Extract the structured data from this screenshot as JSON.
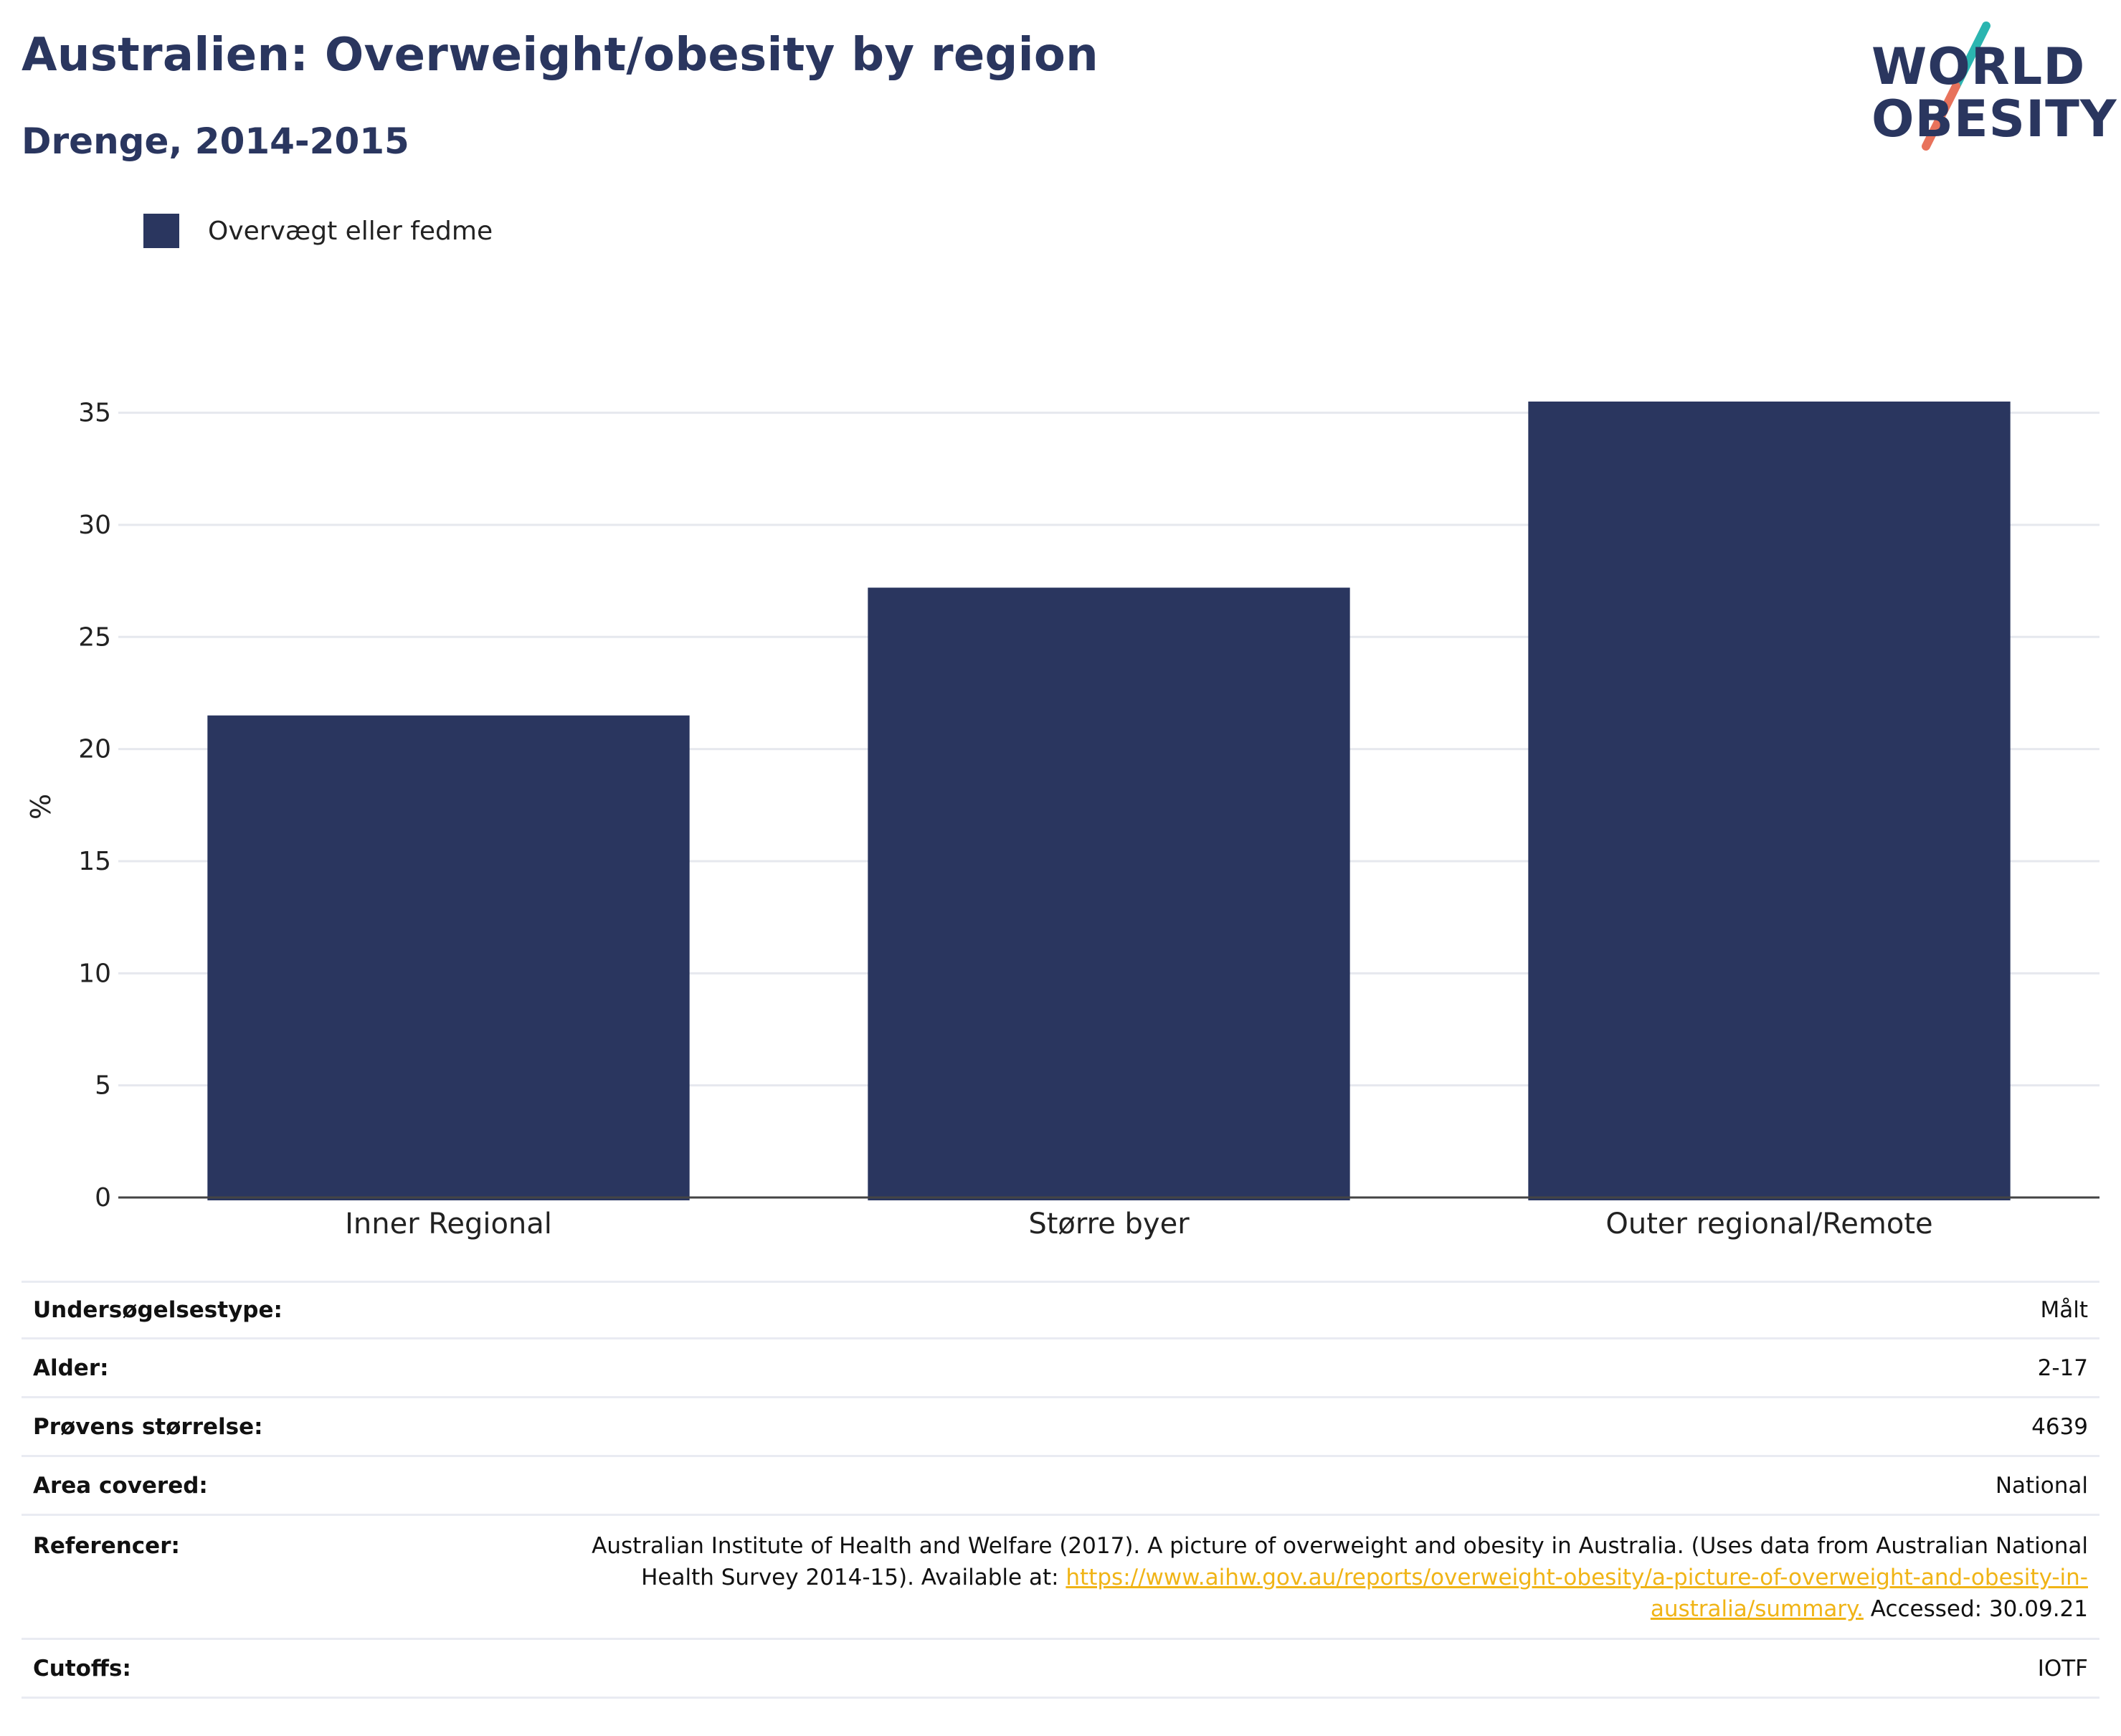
{
  "header": {
    "title": "Australien: Overweight/obesity by region",
    "subtitle": "Drenge, 2014-2015"
  },
  "logo": {
    "line1": "WORLD",
    "line2": "OBESITY",
    "colors": {
      "text": "#2a365f",
      "teal": "#2bb5b0",
      "coral": "#e8725b"
    }
  },
  "legend": {
    "label": "Overvægt eller fedme",
    "color": "#2a365f"
  },
  "chart_data": {
    "type": "bar",
    "categories": [
      "Inner Regional",
      "Større byer",
      "Outer regional/Remote"
    ],
    "series": [
      {
        "name": "Overvægt eller fedme",
        "values": [
          21.5,
          27.2,
          35.5
        ],
        "color": "#2a365f"
      }
    ],
    "ylabel": "%",
    "ylim": [
      0,
      35.5
    ],
    "yticks": [
      0,
      5,
      10,
      15,
      20,
      25,
      30,
      35
    ],
    "grid": true,
    "legend_position": "top-left"
  },
  "details": [
    {
      "label": "Undersøgelsestype:",
      "value": "Målt"
    },
    {
      "label": "Alder:",
      "value": "2-17"
    },
    {
      "label": "Prøvens størrelse:",
      "value": "4639"
    },
    {
      "label": "Area covered:",
      "value": "National"
    }
  ],
  "references": {
    "label": "Referencer:",
    "text_before": "Australian Institute of Health and Welfare (2017). A picture of overweight and obesity in Australia. (Uses data from Australian National Health Survey 2014-15). Available at: ",
    "link": "https://www.aihw.gov.au/reports/overweight-obesity/a-picture-of-overweight-and-obesity-in-australia/summary.",
    "text_after": " Accessed: 30.09.21"
  },
  "cutoffs": {
    "label": "Cutoffs:",
    "value": "IOTF"
  }
}
